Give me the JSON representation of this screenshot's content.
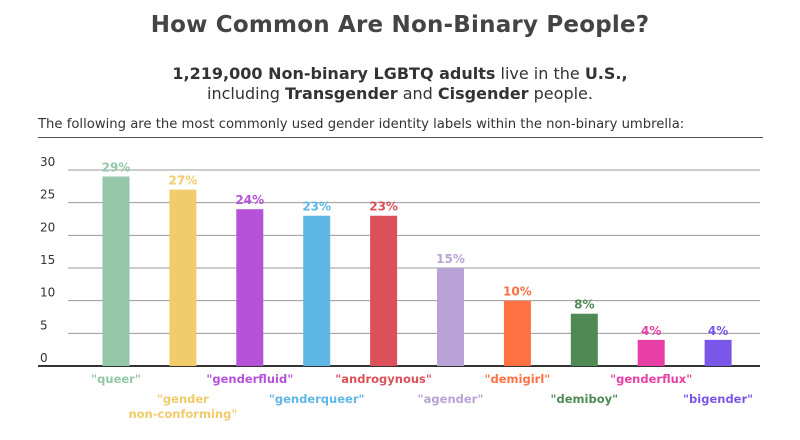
{
  "title": "How Common Are Non-Binary People?",
  "subtitle": {
    "line1_bold1": "1,219,000 Non-binary LGBTQ adults",
    "line1_mid": " live in the ",
    "line1_bold2": "U.S.,",
    "line2_pre": "including ",
    "line2_bold1": "Transgender",
    "line2_mid": " and ",
    "line2_bold2": "Cisgender",
    "line2_post": " people."
  },
  "intro": "The following are the most commonly used gender identity labels within the non-binary umbrella:",
  "chart_data": {
    "type": "bar",
    "title": "How Common Are Non-Binary People?",
    "xlabel": "",
    "ylabel": "",
    "ylim": [
      0,
      30
    ],
    "yticks": [
      0,
      5,
      10,
      15,
      20,
      25,
      30
    ],
    "grid": true,
    "categories": [
      "\"queer\"",
      "\"gender non-conforming\"",
      "\"genderfluid\"",
      "\"genderqueer\"",
      "\"androgynous\"",
      "\"agender\"",
      "\"demigirl\"",
      "\"demiboy\"",
      "\"genderflux\"",
      "\"bigender\""
    ],
    "category_lines": [
      [
        "\"queer\""
      ],
      [
        "\"gender",
        "non-conforming\""
      ],
      [
        "\"genderfluid\""
      ],
      [
        "\"genderqueer\""
      ],
      [
        "\"androgynous\""
      ],
      [
        "\"agender\""
      ],
      [
        "\"demigirl\""
      ],
      [
        "\"demiboy\""
      ],
      [
        "\"genderflux\""
      ],
      [
        "\"bigender\""
      ]
    ],
    "values": [
      29,
      27,
      24,
      23,
      23,
      15,
      10,
      8,
      4,
      4
    ],
    "data_labels": [
      "29%",
      "27%",
      "24%",
      "23%",
      "23%",
      "15%",
      "10%",
      "8%",
      "4%",
      "4%"
    ],
    "colors": [
      "#93c7a8",
      "#f2cb6b",
      "#b552d9",
      "#5fb7e6",
      "#dc505a",
      "#b9a3d6",
      "#ff7043",
      "#4f8a55",
      "#e83fa6",
      "#7a57e8"
    ]
  }
}
